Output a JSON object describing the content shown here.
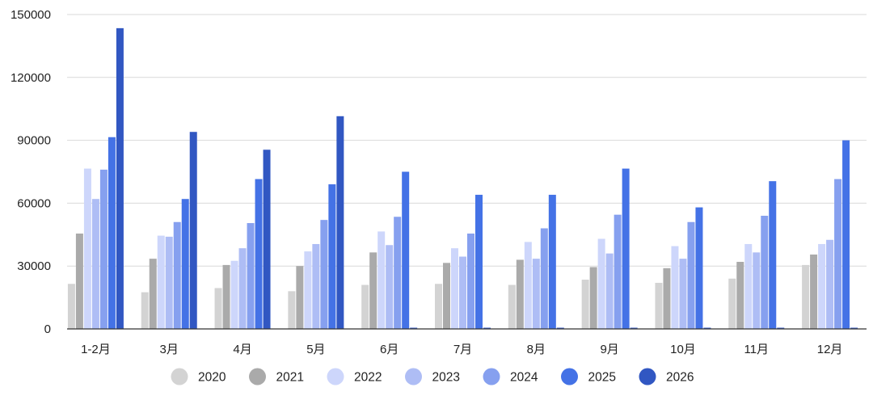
{
  "chart_data": {
    "type": "bar",
    "categories": [
      "1-2月",
      "3月",
      "4月",
      "5月",
      "6月",
      "7月",
      "8月",
      "9月",
      "10月",
      "11月",
      "12月"
    ],
    "ylim": [
      0,
      150000
    ],
    "yticks": [
      0,
      30000,
      60000,
      90000,
      120000,
      150000
    ],
    "grid": true,
    "legend_position": "bottom",
    "series": [
      {
        "name": "2020",
        "color": "#d3d3d3",
        "values": [
          21500,
          17500,
          19500,
          18000,
          21000,
          21500,
          21000,
          23500,
          22000,
          24000,
          30500
        ]
      },
      {
        "name": "2021",
        "color": "#aaaaaa",
        "values": [
          45500,
          33500,
          30500,
          30000,
          36500,
          31500,
          33000,
          29500,
          29000,
          32000,
          35500
        ]
      },
      {
        "name": "2022",
        "color": "#cdd6fb",
        "values": [
          76500,
          44500,
          32500,
          37000,
          46500,
          38500,
          41500,
          43000,
          39500,
          40500,
          40500
        ]
      },
      {
        "name": "2023",
        "color": "#aebdf5",
        "values": [
          62000,
          44000,
          38500,
          40500,
          40000,
          34500,
          33500,
          36000,
          33500,
          36500,
          42500
        ]
      },
      {
        "name": "2024",
        "color": "#86a0ef",
        "values": [
          76000,
          51000,
          50500,
          52000,
          53500,
          45500,
          48000,
          54500,
          51000,
          54000,
          71500
        ]
      },
      {
        "name": "2025",
        "color": "#4472e6",
        "values": [
          91500,
          62000,
          71500,
          69000,
          75000,
          64000,
          64000,
          76500,
          58000,
          70500,
          90000
        ]
      },
      {
        "name": "2026",
        "color": "#3157c2",
        "values": [
          143500,
          94000,
          85500,
          101500,
          0,
          0,
          0,
          0,
          0,
          0,
          0
        ]
      }
    ]
  }
}
